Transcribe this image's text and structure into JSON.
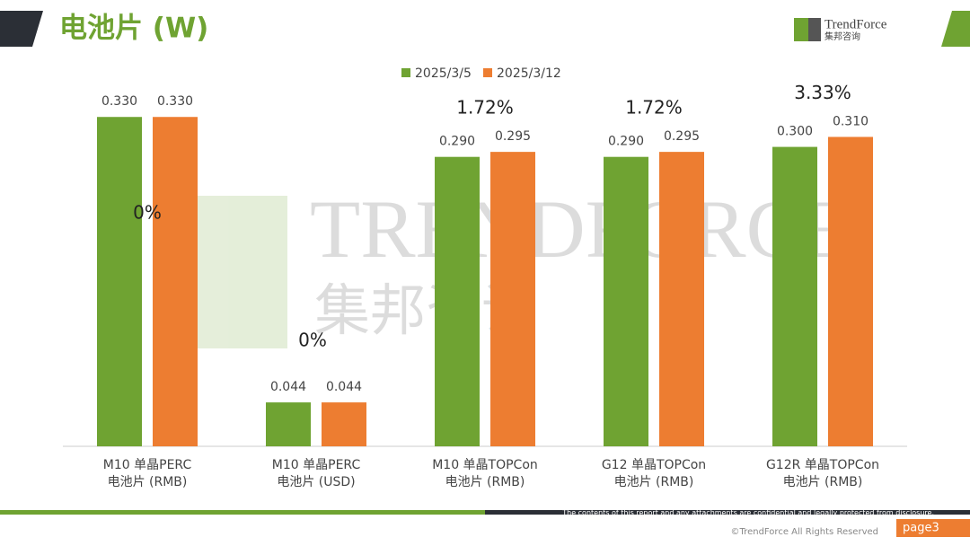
{
  "header": {
    "title": "电池片 (W)",
    "logo_name": "TrendForce",
    "logo_sub": "集邦咨询"
  },
  "watermark": {
    "name": "TRENDFORCE",
    "sub": "集邦咨询"
  },
  "chart_data": {
    "type": "bar",
    "categories": [
      "M10 单晶PERC\n电池片 (RMB)",
      "M10 单晶PERC\n电池片 (USD)",
      "M10 单晶TOPCon\n电池片 (RMB)",
      "G12 单晶TOPCon\n电池片 (RMB)",
      "G12R 单晶TOPCon\n电池片 (RMB)"
    ],
    "series": [
      {
        "name": "2025/3/5",
        "color": "#6fa332",
        "values": [
          0.33,
          0.044,
          0.29,
          0.29,
          0.3
        ],
        "value_labels": [
          "0.330",
          "0.044",
          "0.290",
          "0.290",
          "0.300"
        ]
      },
      {
        "name": "2025/3/12",
        "color": "#ed7d31",
        "values": [
          0.33,
          0.044,
          0.295,
          0.295,
          0.31
        ],
        "value_labels": [
          "0.330",
          "0.044",
          "0.295",
          "0.295",
          "0.310"
        ]
      }
    ],
    "annotations": [
      "0%",
      "0%",
      "1.72%",
      "1.72%",
      "3.33%"
    ],
    "ylim": [
      0,
      0.35
    ],
    "legend": "top"
  },
  "footer": {
    "disclaimer": "The contents of this report and any attachments are confidential and legally protected from disclosure.",
    "copyright": "©TrendForce All Rights Reserved",
    "page": "page3"
  }
}
